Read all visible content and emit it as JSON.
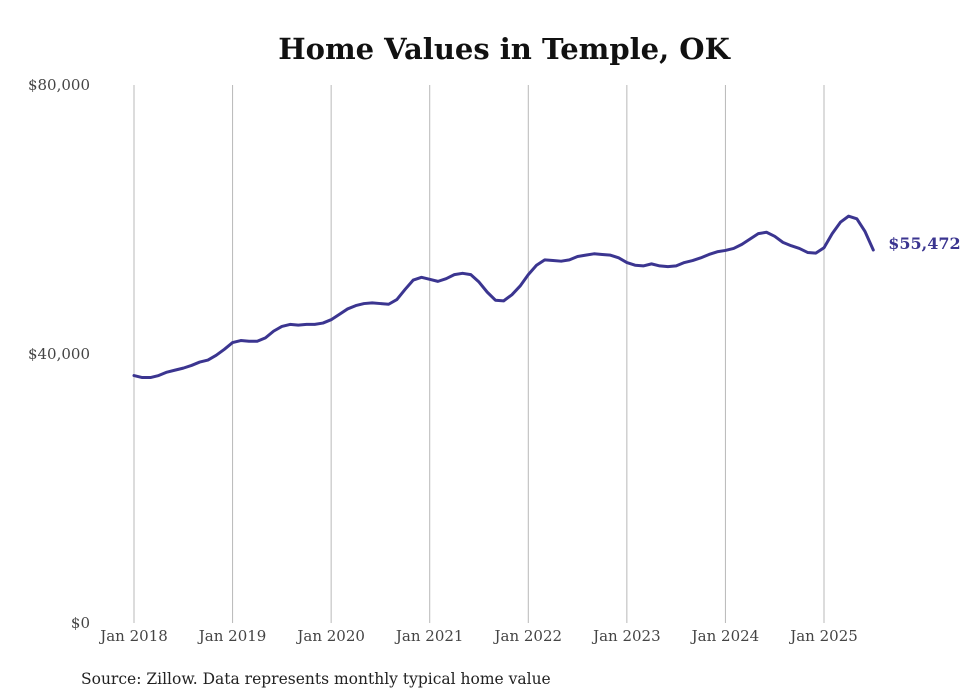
{
  "chart_data": {
    "type": "line",
    "title": "Home Values in Temple, OK",
    "source": "Source: Zillow. Data represents monthly typical home value",
    "ylim": [
      0,
      80000
    ],
    "y_ticks": [
      {
        "value": 0,
        "label": "$0"
      },
      {
        "value": 40000,
        "label": "$40,000"
      },
      {
        "value": 80000,
        "label": "$80,000"
      }
    ],
    "x_ticks": [
      {
        "value": "2018-01",
        "label": "Jan 2018"
      },
      {
        "value": "2019-01",
        "label": "Jan 2019"
      },
      {
        "value": "2020-01",
        "label": "Jan 2020"
      },
      {
        "value": "2021-01",
        "label": "Jan 2021"
      },
      {
        "value": "2022-01",
        "label": "Jan 2022"
      },
      {
        "value": "2023-01",
        "label": "Jan 2023"
      },
      {
        "value": "2024-01",
        "label": "Jan 2024"
      },
      {
        "value": "2025-01",
        "label": "Jan 2025"
      }
    ],
    "grid": "vertical",
    "legend": "none",
    "line_color": "#3b3590",
    "end_label": "$55,472",
    "series": [
      {
        "x": [
          "2018-01",
          "2018-02",
          "2018-03",
          "2018-04",
          "2018-05",
          "2018-06",
          "2018-07",
          "2018-08",
          "2018-09",
          "2018-10",
          "2018-11",
          "2018-12",
          "2019-01",
          "2019-02",
          "2019-03",
          "2019-04",
          "2019-05",
          "2019-06",
          "2019-07",
          "2019-08",
          "2019-09",
          "2019-10",
          "2019-11",
          "2019-12",
          "2020-01",
          "2020-02",
          "2020-03",
          "2020-04",
          "2020-05",
          "2020-06",
          "2020-07",
          "2020-08",
          "2020-09",
          "2020-10",
          "2020-11",
          "2020-12",
          "2021-01",
          "2021-02",
          "2021-03",
          "2021-04",
          "2021-05",
          "2021-06",
          "2021-07",
          "2021-08",
          "2021-09",
          "2021-10",
          "2021-11",
          "2021-12",
          "2022-01",
          "2022-02",
          "2022-03",
          "2022-04",
          "2022-05",
          "2022-06",
          "2022-07",
          "2022-08",
          "2022-09",
          "2022-10",
          "2022-11",
          "2022-12",
          "2023-01",
          "2023-02",
          "2023-03",
          "2023-04",
          "2023-05",
          "2023-06",
          "2023-07",
          "2023-08",
          "2023-09",
          "2023-10",
          "2023-11",
          "2023-12",
          "2024-01",
          "2024-02",
          "2024-03",
          "2024-04",
          "2024-05",
          "2024-06",
          "2024-07",
          "2024-08",
          "2024-09",
          "2024-10",
          "2024-11",
          "2024-12",
          "2025-01",
          "2025-02",
          "2025-03",
          "2025-04",
          "2025-05",
          "2025-06",
          "2025-07"
        ],
        "values": [
          36800,
          36500,
          36500,
          36800,
          37300,
          37600,
          37900,
          38300,
          38800,
          39100,
          39800,
          40700,
          41700,
          42000,
          41900,
          41900,
          42400,
          43400,
          44100,
          44400,
          44300,
          44400,
          44400,
          44600,
          45100,
          45900,
          46700,
          47200,
          47500,
          47600,
          47500,
          47400,
          48100,
          49600,
          51000,
          51400,
          51100,
          50800,
          51200,
          51800,
          52000,
          51800,
          50700,
          49200,
          48000,
          47900,
          48800,
          50100,
          51800,
          53200,
          54000,
          53900,
          53800,
          54000,
          54500,
          54700,
          54900,
          54800,
          54700,
          54300,
          53600,
          53200,
          53100,
          53400,
          53100,
          53000,
          53100,
          53600,
          53900,
          54300,
          54800,
          55200,
          55400,
          55700,
          56300,
          57100,
          57900,
          58100,
          57500,
          56600,
          56100,
          55700,
          55100,
          55000,
          55800,
          57900,
          59600,
          60500,
          60100,
          58200,
          55472
        ]
      }
    ]
  }
}
